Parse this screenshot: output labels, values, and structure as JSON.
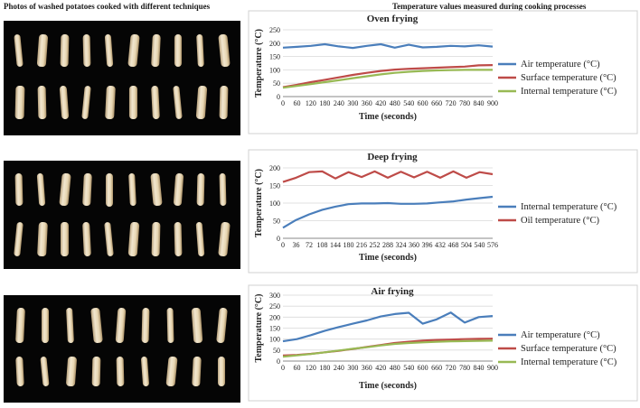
{
  "headers": {
    "left": "Photos of washed potatoes cooked with different techniques",
    "right": "Temperature values measured during cooking processes"
  },
  "photos": [
    {
      "rows": [
        10,
        10
      ]
    },
    {
      "rows": [
        10,
        10
      ]
    },
    {
      "rows": [
        9,
        9
      ]
    }
  ],
  "chart_data": [
    {
      "type": "line",
      "title": "Oven frying",
      "xlabel": "Time (seconds)",
      "ylabel": "Temperature (°C)",
      "ylim": [
        0,
        250
      ],
      "yticks": [
        0,
        50,
        100,
        150,
        200,
        250
      ],
      "x": [
        0,
        60,
        120,
        180,
        240,
        300,
        360,
        420,
        480,
        540,
        600,
        660,
        720,
        780,
        840,
        900
      ],
      "xtick_labels": [
        "0",
        "60",
        "120",
        "180",
        "240",
        "300",
        "360",
        "420",
        "480",
        "540",
        "600",
        "660",
        "720",
        "780",
        "840",
        "900"
      ],
      "grid": true,
      "legend_position": "right",
      "series": [
        {
          "name": "Air temperature (°C)",
          "color": "#4a7ebb",
          "values": [
            183,
            186,
            190,
            196,
            188,
            182,
            190,
            196,
            183,
            194,
            184,
            186,
            190,
            188,
            192,
            187
          ]
        },
        {
          "name": "Surface temperature (°C)",
          "color": "#be4b48",
          "values": [
            35,
            44,
            54,
            63,
            72,
            81,
            89,
            96,
            101,
            104,
            106,
            108,
            110,
            112,
            117,
            118
          ]
        },
        {
          "name": "Internal temperature (°C)",
          "color": "#98b954",
          "values": [
            33,
            40,
            47,
            54,
            61,
            69,
            76,
            83,
            89,
            93,
            96,
            98,
            99,
            100,
            100,
            100
          ]
        }
      ]
    },
    {
      "type": "line",
      "title": "Deep frying",
      "xlabel": "Time (seconds)",
      "ylabel": "Temperature (°C)",
      "ylim": [
        0,
        200
      ],
      "yticks": [
        0,
        50,
        100,
        150,
        200
      ],
      "x": [
        0,
        36,
        72,
        108,
        144,
        180,
        216,
        252,
        288,
        324,
        360,
        396,
        432,
        468,
        504,
        540,
        576
      ],
      "xtick_labels": [
        "0",
        "36",
        "72",
        "108",
        "144",
        "180",
        "216",
        "252",
        "288",
        "324",
        "360",
        "396",
        "432",
        "468",
        "504",
        "540",
        "576"
      ],
      "grid": true,
      "legend_position": "right",
      "series": [
        {
          "name": "Internal temperature (°C)",
          "color": "#4a7ebb",
          "values": [
            30,
            52,
            68,
            81,
            90,
            97,
            99,
            99,
            100,
            98,
            98,
            99,
            102,
            105,
            110,
            114,
            118
          ]
        },
        {
          "name": "Oil temperature (°C)",
          "color": "#be4b48",
          "values": [
            160,
            172,
            188,
            190,
            170,
            188,
            174,
            190,
            172,
            189,
            173,
            189,
            172,
            190,
            172,
            188,
            182
          ]
        }
      ]
    },
    {
      "type": "line",
      "title": "Air frying",
      "xlabel": "Time (seconds)",
      "ylabel": "Temperature (°C)",
      "ylim": [
        0,
        300
      ],
      "yticks": [
        0,
        50,
        100,
        150,
        200,
        250,
        300
      ],
      "x": [
        0,
        60,
        120,
        180,
        240,
        300,
        360,
        420,
        480,
        540,
        600,
        660,
        720,
        780,
        840,
        900
      ],
      "xtick_labels": [
        "0",
        "60",
        "120",
        "180",
        "240",
        "300",
        "360",
        "420",
        "480",
        "540",
        "600",
        "660",
        "720",
        "780",
        "840",
        "900"
      ],
      "grid": true,
      "legend_position": "right",
      "series": [
        {
          "name": "Air temperature (°C)",
          "color": "#4a7ebb",
          "values": [
            90,
            100,
            118,
            138,
            155,
            170,
            185,
            203,
            214,
            220,
            170,
            190,
            221,
            175,
            200,
            205
          ]
        },
        {
          "name": "Surface temperature (°C)",
          "color": "#be4b48",
          "values": [
            25,
            28,
            33,
            40,
            47,
            55,
            64,
            73,
            82,
            88,
            93,
            96,
            98,
            100,
            101,
            102
          ]
        },
        {
          "name": "Internal temperature (°C)",
          "color": "#98b954",
          "values": [
            20,
            26,
            32,
            40,
            48,
            56,
            63,
            71,
            78,
            82,
            85,
            88,
            90,
            91,
            92,
            93
          ]
        }
      ]
    }
  ]
}
